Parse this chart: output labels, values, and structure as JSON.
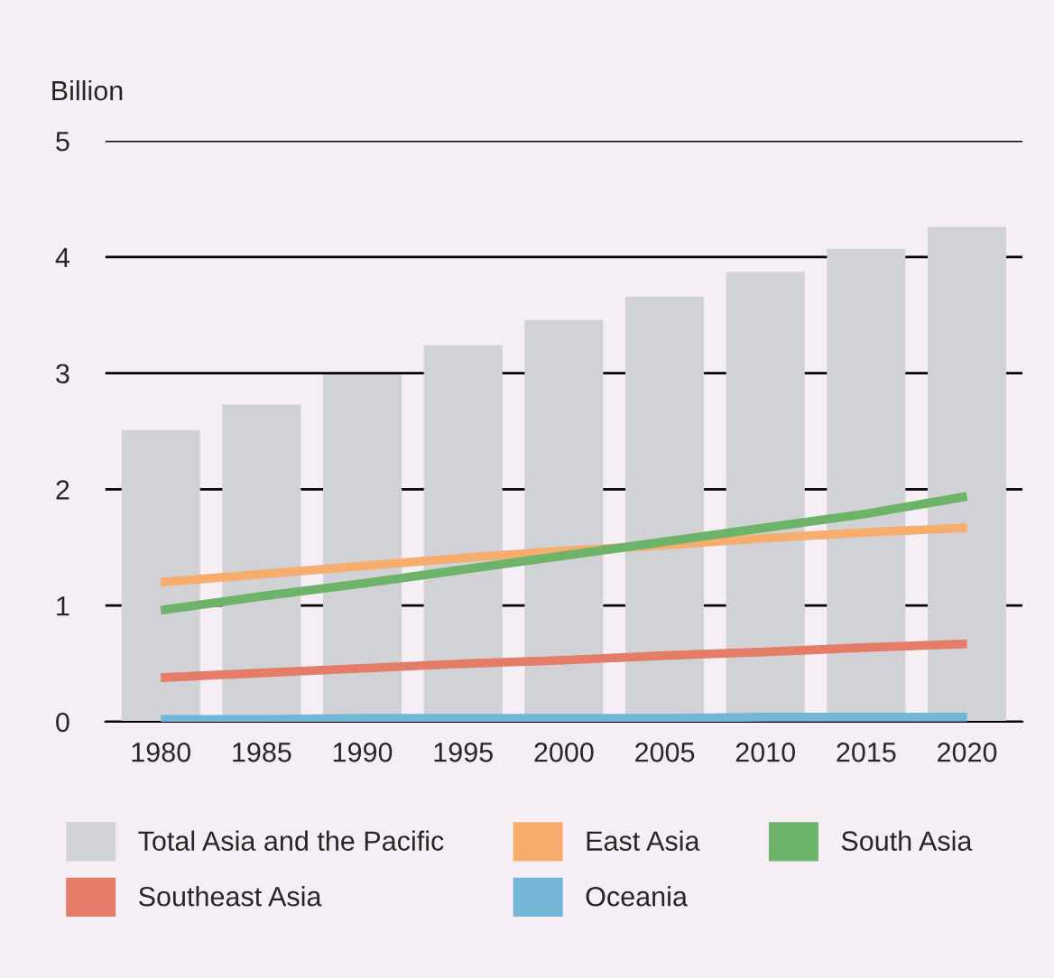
{
  "chart_data": {
    "type": "bar",
    "ylabel": "Billion",
    "categories": [
      "1980",
      "1985",
      "1990",
      "1995",
      "2000",
      "2005",
      "2010",
      "2015",
      "2020"
    ],
    "series": [
      {
        "name": "Total Asia and the Pacific",
        "color": "#d1d2d6",
        "values": [
          2.51,
          2.73,
          2.99,
          3.24,
          3.46,
          3.66,
          3.87,
          4.07,
          4.26
        ]
      },
      {
        "name": "East Asia",
        "type": "line",
        "color": "#f6ad6e",
        "values": [
          1.2,
          1.27,
          1.34,
          1.41,
          1.47,
          1.52,
          1.58,
          1.63,
          1.67
        ]
      },
      {
        "name": "South Asia",
        "type": "line",
        "color": "#6db46a",
        "values": [
          0.96,
          1.08,
          1.19,
          1.31,
          1.43,
          1.55,
          1.67,
          1.79,
          1.94
        ]
      },
      {
        "name": "Southeast Asia",
        "type": "line",
        "color": "#e47c67",
        "values": [
          0.38,
          0.42,
          0.46,
          0.5,
          0.53,
          0.57,
          0.6,
          0.64,
          0.67
        ]
      },
      {
        "name": "Oceania",
        "type": "line",
        "color": "#73b6d8",
        "values": [
          0.02,
          0.02,
          0.03,
          0.03,
          0.03,
          0.03,
          0.04,
          0.04,
          0.04
        ]
      }
    ],
    "ylim": [
      0,
      5
    ],
    "yticks": [
      0,
      1,
      2,
      3,
      4,
      5
    ],
    "grid": "y",
    "legend": "bottom",
    "marker": "none",
    "line_style": "solid"
  }
}
